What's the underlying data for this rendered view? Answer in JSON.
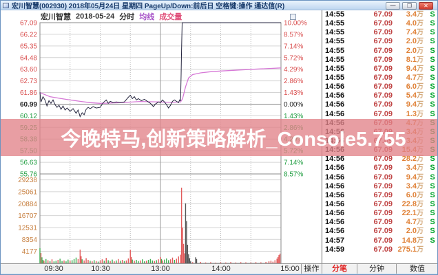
{
  "window": {
    "title": "宏川智慧(002930) 2018年05月24日 星期四 PageUp/Down:前后日 空格键:操作 通达信(R)",
    "buttons": [
      {
        "name": "minimize",
        "glyph": "—"
      },
      {
        "name": "restore",
        "glyph": "❐"
      },
      {
        "name": "close",
        "glyph": "✕"
      }
    ]
  },
  "chart_header": {
    "stock": "宏川智慧",
    "date": "2018-05-24",
    "period": "分时",
    "avg_label": "均线",
    "vol_label": "成交量"
  },
  "banner": {
    "text": "今晚特马,创新策略解析_Console5.755",
    "bg": "rgba(226,131,137,0.78)",
    "text_color": "#ffffff"
  },
  "chart_data": {
    "type": "line",
    "title": "宏川智慧 2018-05-24 分时",
    "x_axis": {
      "tick_labels": [
        "09:30",
        "10:30",
        "13:00",
        "14:00",
        "15:00"
      ],
      "range_minutes": [
        0,
        240
      ],
      "session": "09:30-11:30, 13:00-15:00"
    },
    "price_axis": {
      "max": 67.09,
      "min": 55.76,
      "prev_close": 60.99,
      "ticks": [
        "67.09",
        "66.22",
        "65.35",
        "64.48",
        "63.60",
        "62.73",
        "61.86",
        "60.99",
        "60.12",
        "59.25",
        "58.38",
        "57.50",
        "56.63",
        "55.76"
      ]
    },
    "pct_axis": {
      "ticks": [
        "10.00%",
        "8.57%",
        "7.14%",
        "5.72%",
        "4.29%",
        "2.86%",
        "1.43%",
        "0.00%",
        "1.43%",
        "2.86%",
        "4.29%",
        "5.72%",
        "7.14%",
        "8.57%"
      ]
    },
    "volume_axis": {
      "ticks": [
        29238,
        25061,
        20884,
        16707,
        12531,
        8354,
        4177
      ],
      "scale_max": 31300
    },
    "grid": true,
    "legend_position": "none",
    "series": [
      {
        "name": "price",
        "color": "#26263f",
        "points": [
          [
            0,
            61.88
          ],
          [
            1,
            61.15
          ],
          [
            3,
            61.55
          ],
          [
            5,
            61.3
          ],
          [
            7,
            60.85
          ],
          [
            9,
            61.25
          ],
          [
            11,
            61.05
          ],
          [
            13,
            61.3
          ],
          [
            15,
            60.95
          ],
          [
            17,
            60.75
          ],
          [
            19,
            60.9
          ],
          [
            21,
            60.6
          ],
          [
            23,
            60.85
          ],
          [
            25,
            60.55
          ],
          [
            27,
            60.7
          ],
          [
            30,
            60.45
          ],
          [
            33,
            60.65
          ],
          [
            36,
            60.3
          ],
          [
            38,
            60.55
          ],
          [
            40,
            60.05
          ],
          [
            42,
            60.35
          ],
          [
            44,
            60.2
          ],
          [
            46,
            60.6
          ],
          [
            48,
            60.75
          ],
          [
            50,
            60.65
          ],
          [
            53,
            60.8
          ],
          [
            56,
            60.7
          ],
          [
            60,
            60.75
          ],
          [
            63,
            61.1
          ],
          [
            66,
            61.3
          ],
          [
            68,
            61.05
          ],
          [
            70,
            61.2
          ],
          [
            73,
            61.1
          ],
          [
            76,
            61.15
          ],
          [
            80,
            61.1
          ],
          [
            84,
            61.15
          ],
          [
            88,
            61.5
          ],
          [
            90,
            61.65
          ],
          [
            92,
            61.4
          ],
          [
            94,
            61.55
          ],
          [
            96,
            61.3
          ],
          [
            98,
            61.4
          ],
          [
            101,
            61.25
          ],
          [
            104,
            61.35
          ],
          [
            107,
            61.2
          ],
          [
            110,
            61.05
          ],
          [
            113,
            60.8
          ],
          [
            115,
            61.0
          ],
          [
            118,
            61.15
          ],
          [
            120,
            61.1
          ],
          [
            122,
            61.3
          ],
          [
            124,
            61.15
          ],
          [
            126,
            60.95
          ],
          [
            128,
            60.7
          ],
          [
            130,
            60.9
          ],
          [
            132,
            61.2
          ],
          [
            134,
            61.3
          ],
          [
            136,
            61.2
          ],
          [
            138,
            61.1
          ],
          [
            139,
            61.3
          ],
          [
            140,
            61.25
          ],
          [
            140.6,
            63.2
          ],
          [
            141,
            65.0
          ],
          [
            141.6,
            67.09
          ],
          [
            150,
            67.09
          ],
          [
            180,
            67.09
          ],
          [
            210,
            67.09
          ],
          [
            240,
            67.09
          ]
        ]
      },
      {
        "name": "average",
        "color": "#d678d6",
        "points": [
          [
            0,
            61.85
          ],
          [
            10,
            61.55
          ],
          [
            20,
            61.42
          ],
          [
            30,
            61.3
          ],
          [
            40,
            61.2
          ],
          [
            50,
            61.1
          ],
          [
            60,
            61.05
          ],
          [
            70,
            61.07
          ],
          [
            80,
            61.1
          ],
          [
            90,
            61.14
          ],
          [
            100,
            61.19
          ],
          [
            110,
            61.17
          ],
          [
            120,
            61.15
          ],
          [
            130,
            61.12
          ],
          [
            140,
            61.15
          ],
          [
            142,
            61.4
          ],
          [
            145,
            62.3
          ],
          [
            148,
            62.95
          ],
          [
            152,
            63.2
          ],
          [
            160,
            63.33
          ],
          [
            170,
            63.42
          ],
          [
            180,
            63.47
          ],
          [
            200,
            63.55
          ],
          [
            220,
            63.63
          ],
          [
            240,
            63.7
          ]
        ]
      }
    ],
    "volume_bars": [
      [
        0,
        5300,
        "g"
      ],
      [
        1,
        3600,
        "r"
      ],
      [
        2,
        2100,
        "g"
      ],
      [
        3,
        1200,
        "g"
      ],
      [
        4,
        900,
        "r"
      ],
      [
        6,
        1500,
        "g"
      ],
      [
        8,
        1100,
        "r"
      ],
      [
        10,
        800,
        "g"
      ],
      [
        12,
        1400,
        "r"
      ],
      [
        14,
        700,
        "g"
      ],
      [
        16,
        900,
        "g"
      ],
      [
        18,
        1200,
        "r"
      ],
      [
        20,
        1600,
        "g"
      ],
      [
        22,
        800,
        "g"
      ],
      [
        24,
        1000,
        "r"
      ],
      [
        26,
        700,
        "g"
      ],
      [
        28,
        1300,
        "g"
      ],
      [
        30,
        900,
        "r"
      ],
      [
        32,
        1100,
        "g"
      ],
      [
        34,
        1500,
        "g"
      ],
      [
        36,
        2000,
        "g"
      ],
      [
        38,
        1500,
        "r"
      ],
      [
        40,
        4800,
        "r"
      ],
      [
        41,
        2500,
        "r"
      ],
      [
        42,
        1400,
        "g"
      ],
      [
        44,
        1000,
        "r"
      ],
      [
        46,
        1800,
        "r"
      ],
      [
        48,
        1200,
        "r"
      ],
      [
        50,
        900,
        "g"
      ],
      [
        52,
        700,
        "r"
      ],
      [
        54,
        1100,
        "g"
      ],
      [
        56,
        800,
        "r"
      ],
      [
        58,
        600,
        "g"
      ],
      [
        60,
        1000,
        "r"
      ],
      [
        62,
        1400,
        "r"
      ],
      [
        64,
        900,
        "g"
      ],
      [
        66,
        1900,
        "r"
      ],
      [
        68,
        1100,
        "g"
      ],
      [
        70,
        800,
        "r"
      ],
      [
        72,
        1300,
        "g"
      ],
      [
        74,
        700,
        "r"
      ],
      [
        76,
        1000,
        "g"
      ],
      [
        78,
        1500,
        "r"
      ],
      [
        80,
        900,
        "g"
      ],
      [
        82,
        1200,
        "r"
      ],
      [
        84,
        800,
        "g"
      ],
      [
        86,
        1000,
        "r"
      ],
      [
        88,
        1700,
        "r"
      ],
      [
        90,
        4700,
        "r"
      ],
      [
        91,
        2200,
        "r"
      ],
      [
        92,
        1300,
        "g"
      ],
      [
        94,
        900,
        "r"
      ],
      [
        96,
        1200,
        "g"
      ],
      [
        98,
        800,
        "g"
      ],
      [
        100,
        1000,
        "r"
      ],
      [
        102,
        1400,
        "g"
      ],
      [
        104,
        700,
        "g"
      ],
      [
        106,
        900,
        "r"
      ],
      [
        108,
        1200,
        "g"
      ],
      [
        110,
        1500,
        "g"
      ],
      [
        112,
        1000,
        "g"
      ],
      [
        114,
        800,
        "r"
      ],
      [
        116,
        1100,
        "g"
      ],
      [
        118,
        1400,
        "r"
      ],
      [
        120,
        2200,
        "r"
      ],
      [
        121,
        1500,
        "g"
      ],
      [
        122,
        1000,
        "r"
      ],
      [
        124,
        1300,
        "g"
      ],
      [
        126,
        1700,
        "g"
      ],
      [
        128,
        1100,
        "g"
      ],
      [
        130,
        1400,
        "r"
      ],
      [
        132,
        2000,
        "r"
      ],
      [
        134,
        1200,
        "g"
      ],
      [
        136,
        1600,
        "r"
      ],
      [
        138,
        2400,
        "r"
      ],
      [
        140,
        3000,
        "r"
      ],
      [
        141,
        26500,
        "r"
      ],
      [
        142,
        12500,
        "r"
      ],
      [
        143,
        6800,
        "r"
      ],
      [
        144,
        3500,
        "r"
      ],
      [
        145,
        21000,
        "k"
      ],
      [
        146,
        14800,
        "k"
      ],
      [
        147,
        6500,
        "k"
      ],
      [
        148,
        3200,
        "k"
      ],
      [
        149,
        1800,
        "k"
      ],
      [
        150,
        700,
        "k"
      ],
      [
        152,
        400,
        "r"
      ],
      [
        155,
        2100,
        "k"
      ],
      [
        156,
        1500,
        "k"
      ],
      [
        160,
        500,
        "r"
      ],
      [
        165,
        300,
        "r"
      ],
      [
        170,
        400,
        "r"
      ],
      [
        175,
        250,
        "r"
      ],
      [
        180,
        350,
        "r"
      ],
      [
        185,
        300,
        "r"
      ],
      [
        190,
        450,
        "r"
      ],
      [
        195,
        300,
        "r"
      ],
      [
        200,
        400,
        "r"
      ],
      [
        205,
        350,
        "r"
      ],
      [
        210,
        300,
        "r"
      ],
      [
        215,
        400,
        "r"
      ],
      [
        220,
        350,
        "r"
      ],
      [
        225,
        500,
        "r"
      ],
      [
        228,
        700,
        "r"
      ],
      [
        230,
        900,
        "r"
      ],
      [
        232,
        600,
        "r"
      ],
      [
        234,
        1100,
        "r"
      ],
      [
        236,
        1600,
        "r"
      ],
      [
        237,
        2200,
        "r"
      ],
      [
        238,
        2900,
        "r"
      ],
      [
        239,
        3400,
        "r"
      ]
    ]
  },
  "ticker": {
    "rows": [
      {
        "time": "14:55",
        "price": "67.09",
        "vol": "3.4",
        "unit": "万",
        "side": "S"
      },
      {
        "time": "14:55",
        "price": "67.09",
        "vol": "4.0",
        "unit": "万",
        "side": "S"
      },
      {
        "time": "14:55",
        "price": "67.09",
        "vol": "7.4",
        "unit": "万",
        "side": "S"
      },
      {
        "time": "14:55",
        "price": "67.09",
        "vol": "2.0",
        "unit": "万",
        "side": "S"
      },
      {
        "time": "14:55",
        "price": "67.09",
        "vol": "2.0",
        "unit": "万",
        "side": "S"
      },
      {
        "time": "14:55",
        "price": "67.09",
        "vol": "8.1",
        "unit": "万",
        "side": "S"
      },
      {
        "time": "14:55",
        "price": "67.09",
        "vol": "9.4",
        "unit": "万",
        "side": "S"
      },
      {
        "time": "14:55",
        "price": "67.09",
        "vol": "4.7",
        "unit": "万",
        "side": "S"
      },
      {
        "time": "14:56",
        "price": "67.09",
        "vol": "6.0",
        "unit": "万",
        "side": "S"
      },
      {
        "time": "14:56",
        "price": "67.09",
        "vol": "5.4",
        "unit": "万",
        "side": "S"
      },
      {
        "time": "14:56",
        "price": "67.09",
        "vol": "9.4",
        "unit": "万",
        "side": "S"
      },
      {
        "time": "14:56",
        "price": "67.09",
        "vol": "1.3",
        "unit": "万",
        "side": "S"
      },
      {
        "time": "14:56",
        "price": "67.09",
        "vol": "4.7",
        "unit": "万",
        "side": "S"
      },
      {
        "time": "14:56",
        "price": "67.09",
        "vol": "3.4",
        "unit": "万",
        "side": "S"
      },
      {
        "time": "14:56",
        "price": "67.09",
        "vol": "3.4",
        "unit": "万",
        "side": "S"
      },
      {
        "time": "14:56",
        "price": "67.09",
        "vol": "15.4",
        "unit": "万",
        "side": "S"
      },
      {
        "time": "14:56",
        "price": "67.09",
        "vol": "28.2",
        "unit": "万",
        "side": "S"
      },
      {
        "time": "14:56",
        "price": "67.09",
        "vol": "3.4",
        "unit": "万",
        "side": "S"
      },
      {
        "time": "14:56",
        "price": "67.09",
        "vol": "9.4",
        "unit": "万",
        "side": "S"
      },
      {
        "time": "14:56",
        "price": "67.09",
        "vol": "3.4",
        "unit": "万",
        "side": "S"
      },
      {
        "time": "14:56",
        "price": "67.09",
        "vol": "6.0",
        "unit": "万",
        "side": "S"
      },
      {
        "time": "14:56",
        "price": "67.09",
        "vol": "22.8",
        "unit": "万",
        "side": "S"
      },
      {
        "time": "14:56",
        "price": "67.09",
        "vol": "22.1",
        "unit": "万",
        "side": "S"
      },
      {
        "time": "14:56",
        "price": "67.09",
        "vol": "4.7",
        "unit": "万",
        "side": "S"
      },
      {
        "time": "14:56",
        "price": "67.09",
        "vol": "2.0",
        "unit": "万",
        "side": "S"
      },
      {
        "time": "14:57",
        "price": "67.09",
        "vol": "14.8",
        "unit": "万",
        "side": "S"
      },
      {
        "time": "14:59",
        "price": "67.09",
        "vol": "275.1",
        "unit": "万",
        "side": ""
      }
    ]
  },
  "bottom_bar": {
    "time_labels": [
      "09:30",
      "10:30",
      "13:00",
      "14:00",
      "15:00"
    ],
    "tabs": [
      {
        "label": "操作",
        "active": false
      },
      {
        "label": "分笔",
        "active": true
      },
      {
        "label": "分钟",
        "active": false
      },
      {
        "label": "数值",
        "active": false
      }
    ]
  },
  "colors": {
    "up_red": "#d94f4f",
    "down_green": "#1f9d40",
    "ref_black": "#222222",
    "vol_label_orange": "#c77f3f",
    "price_line": "#26263f",
    "avg_line": "#d678d6",
    "vol_r": "#e25b5b",
    "vol_g": "#3fae52",
    "vol_k": "#555555",
    "banner_bg": "rgba(226,131,137,0.78)"
  }
}
